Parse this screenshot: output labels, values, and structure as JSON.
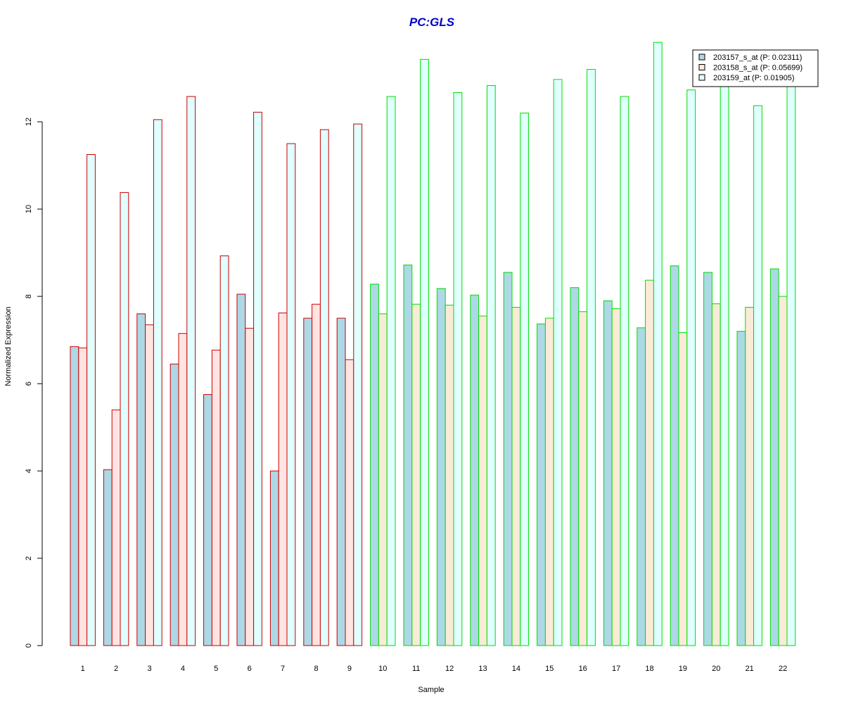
{
  "chart_data": {
    "type": "bar",
    "title": "PC:GLS",
    "xlabel": "Sample",
    "ylabel": "Normalized Expression",
    "ylim": [
      0,
      14
    ],
    "yticks": [
      0,
      2,
      4,
      6,
      8,
      10,
      12
    ],
    "categories": [
      "1",
      "2",
      "3",
      "4",
      "5",
      "6",
      "7",
      "8",
      "9",
      "10",
      "11",
      "12",
      "13",
      "14",
      "15",
      "16",
      "17",
      "18",
      "19",
      "20",
      "21",
      "22"
    ],
    "groups": [
      {
        "samples": [
          "1",
          "2",
          "3",
          "4",
          "5",
          "6",
          "7",
          "8",
          "9"
        ],
        "border_color": "#cc0000"
      },
      {
        "samples": [
          "10",
          "11",
          "12",
          "13",
          "14",
          "15",
          "16",
          "17",
          "18",
          "19",
          "20",
          "21",
          "22"
        ],
        "border_color": "#00dd00"
      }
    ],
    "series": [
      {
        "name": "203157_s_at (P: 0.02311)",
        "fill": "#add8e6",
        "values": [
          6.85,
          4.03,
          7.6,
          6.45,
          5.75,
          8.05,
          4.0,
          7.5,
          7.5,
          8.28,
          8.72,
          8.18,
          8.03,
          8.55,
          7.37,
          8.2,
          7.9,
          7.28,
          8.7,
          8.55,
          7.2,
          8.63
        ]
      },
      {
        "name": "203158_s_at (P: 0.05699)",
        "fill_group1": "#ffe4e1",
        "fill_group2": "#faebd7",
        "fill": "#faebd7",
        "values": [
          6.82,
          5.4,
          7.35,
          7.15,
          6.77,
          7.27,
          7.62,
          7.82,
          6.55,
          7.6,
          7.82,
          7.8,
          7.55,
          7.75,
          7.5,
          7.65,
          7.72,
          8.37,
          7.17,
          7.83,
          7.75,
          8.0
        ]
      },
      {
        "name": "203159_at (P: 0.01905)",
        "fill": "#e0ffff",
        "values": [
          11.25,
          10.38,
          12.05,
          12.58,
          8.93,
          12.22,
          11.5,
          11.82,
          11.95,
          12.58,
          13.43,
          12.67,
          12.83,
          12.2,
          12.97,
          13.2,
          12.58,
          13.82,
          12.73,
          12.85,
          12.37,
          12.9
        ]
      }
    ],
    "legend_position": "top-right",
    "title_color": "#0000cc"
  }
}
